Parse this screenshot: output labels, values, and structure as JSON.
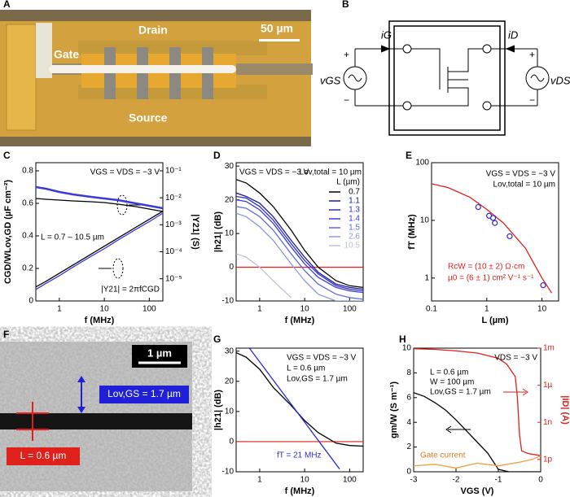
{
  "panels": {
    "labels": [
      "A",
      "B",
      "C",
      "D",
      "E",
      "F",
      "G",
      "H"
    ],
    "a": {
      "drain": "Drain",
      "gate": "Gate",
      "source": "Source",
      "scale": "50 µm"
    },
    "b": {
      "iG": "iG",
      "iD": "iD",
      "vGS": "vGS",
      "vDS": "vDS",
      "plus": "+",
      "minus": "−"
    },
    "f": {
      "scale": "1 µm",
      "lov": "Lov,GS = 1.7 µm",
      "l": "L = 0.6 µm"
    }
  },
  "chart_data": [
    {
      "type": "line",
      "xlabel": "f (MHz)",
      "ylabel": "CGD/WLov,GD (µF cm⁻²)",
      "y2label": "|Y21| (S)",
      "xlog": true,
      "y2log": true,
      "xlim": [
        0.3,
        200
      ],
      "xticks": [
        1,
        10,
        100
      ],
      "ylim": [
        0,
        0.85
      ],
      "yticks": [
        0.0,
        0.2,
        0.4,
        0.6,
        0.8
      ],
      "y2lim": [
        1.5e-06,
        0.2
      ],
      "y2ticks": [
        {
          "value": 1e-05,
          "label": "10⁻⁵"
        },
        {
          "value": 0.0001,
          "label": "10⁻⁴"
        },
        {
          "value": 0.001,
          "label": "10⁻³"
        },
        {
          "value": 0.01,
          "label": "10⁻²"
        },
        {
          "value": 0.1,
          "label": "10⁻¹"
        }
      ],
      "x": [
        0.3,
        0.5,
        1,
        2,
        5,
        10,
        20,
        50,
        100,
        200
      ],
      "series": [
        {
          "color": "#3a3ad8",
          "values": [
            0.7,
            0.69,
            0.67,
            0.655,
            0.64,
            0.63,
            0.62,
            0.6,
            0.585,
            0.57
          ]
        },
        {
          "color": "#000000",
          "values": [
            0.63,
            0.625,
            0.62,
            0.615,
            0.61,
            0.605,
            0.595,
            0.58,
            0.565,
            0.55
          ]
        },
        {
          "color": "#3a3ad8",
          "axis": "y2",
          "values": [
            4e-06,
            6.7e-06,
            1.3e-05,
            2.7e-05,
            6.7e-05,
            0.00013,
            0.00027,
            0.00067,
            0.0013,
            0.0027
          ]
        },
        {
          "color": "#000000",
          "axis": "y2",
          "values": [
            5e-06,
            8e-06,
            1.6e-05,
            3.2e-05,
            8e-05,
            0.00016,
            0.00032,
            0.0008,
            0.0016,
            0.0032
          ]
        }
      ],
      "annotations": [
        {
          "text": "VGS = VDS = −3 V"
        },
        {
          "text": "L = 0.7 – 10.5 µm"
        },
        {
          "text": "|Y21| = 2πfCGD"
        }
      ]
    },
    {
      "type": "line",
      "xlabel": "f (MHz)",
      "ylabel": "|h21| (dB)",
      "xlog": true,
      "xlim": [
        0.3,
        200
      ],
      "xticks": [
        1,
        10,
        100
      ],
      "ylim": [
        -10,
        31
      ],
      "yticks": [
        -10,
        0,
        10,
        20,
        30
      ],
      "hline": 0,
      "hline_color": "#e0201b",
      "x": [
        0.3,
        0.5,
        1,
        2,
        5,
        10,
        20,
        50,
        100,
        200
      ],
      "legend_title": "L (µm)",
      "series": [
        {
          "name": "0.7",
          "color": "#000000",
          "values": [
            26,
            25,
            22,
            18,
            11,
            5,
            0,
            -4,
            -5.5,
            -6
          ]
        },
        {
          "name": "1.1",
          "color": "#1a1a8c",
          "values": [
            22,
            21,
            19,
            15,
            8,
            3,
            -1.5,
            -5,
            -6,
            -6.5
          ]
        },
        {
          "name": "1.3",
          "color": "#2b2bd0",
          "values": [
            21,
            20.5,
            18,
            14,
            7,
            2,
            -2,
            -5.5,
            -6.5,
            -7
          ]
        },
        {
          "name": "1.4",
          "color": "#3a3ae0",
          "values": [
            20,
            19.5,
            17,
            13,
            6,
            1,
            -3,
            -6,
            -7,
            -7.5
          ]
        },
        {
          "name": "1.5",
          "color": "#5a6ad8",
          "values": [
            18,
            17.5,
            15,
            11,
            4,
            -1,
            -5,
            -8,
            -9,
            -9.5
          ]
        },
        {
          "name": "2.6",
          "color": "#8a9ad8",
          "values": [
            16,
            15,
            12,
            8,
            1,
            -4,
            -8,
            -10,
            -10,
            -10
          ]
        },
        {
          "name": "10.5",
          "color": "#c0c0d8",
          "values": [
            4,
            3,
            0,
            -4,
            -9,
            null,
            null,
            null,
            null,
            null
          ]
        }
      ],
      "annotations": [
        {
          "text": "VGS = VDS = −3 V"
        },
        {
          "text": "Lov,total = 10 µm"
        }
      ]
    },
    {
      "type": "scatter",
      "xlabel": "L (µm)",
      "ylabel": "fT (MHz)",
      "xlog": true,
      "ylog": true,
      "xlim": [
        0.1,
        20
      ],
      "xticks": [
        0.1,
        1,
        10
      ],
      "ylim": [
        0.4,
        100
      ],
      "yticks": [
        1,
        10,
        100
      ],
      "series": [
        {
          "color": "#e0201b",
          "kind": "line",
          "x": [
            0.1,
            0.2,
            0.5,
            1,
            2,
            5,
            10,
            15
          ],
          "values": [
            43,
            37,
            25,
            15.5,
            9,
            3.3,
            1.0,
            0.55
          ]
        },
        {
          "color": "#2b2bd0",
          "x": [
            0.7,
            1.1,
            1.3,
            1.4,
            2.6,
            10.5
          ],
          "values": [
            17,
            12,
            11,
            9,
            5.3,
            0.75
          ]
        }
      ],
      "annotations": [
        {
          "text": "VGS = VDS = −3 V"
        },
        {
          "text": "Lov,total = 10 µm"
        },
        {
          "text": "RcW = (10 ± 2) Ω·cm",
          "color": "#e0201b"
        },
        {
          "text": "µ0 = (6 ± 1) cm² V⁻¹ s⁻¹",
          "color": "#e0201b"
        }
      ]
    },
    {
      "type": "line",
      "xlabel": "f (MHz)",
      "ylabel": "|h21| (dB)",
      "xlog": true,
      "xlim": [
        0.3,
        200
      ],
      "xticks": [
        1,
        10,
        100
      ],
      "ylim": [
        -10,
        31
      ],
      "yticks": [
        -10,
        0,
        10,
        20,
        30
      ],
      "hline": 0,
      "hline_color": "#e0201b",
      "series": [
        {
          "color": "#000000",
          "x": [
            0.3,
            0.5,
            1,
            2,
            5,
            10,
            20,
            50,
            100,
            200
          ],
          "values": [
            29.5,
            28,
            24,
            18,
            12,
            7,
            3,
            -0.5,
            -1.3,
            -1.5
          ]
        },
        {
          "color": "#2b2bd0",
          "x": [
            0.6,
            60
          ],
          "values": [
            30.9,
            -9.1
          ]
        }
      ],
      "annotations": [
        {
          "text": "VGS = VDS = −3 V"
        },
        {
          "text": "L = 0.6 µm"
        },
        {
          "text": "Lov,GS = 1.7 µm"
        },
        {
          "text": "fT = 21 MHz",
          "color": "#2b2bd0"
        }
      ]
    },
    {
      "type": "line",
      "xlabel": "VGS (V)",
      "ylabel": "gm/W (S m⁻¹)",
      "y2label": "|ID| (A)",
      "y2log": true,
      "y2_color": "#e0201b",
      "xlim": [
        -3,
        0
      ],
      "xticks": [
        -3,
        -2,
        -1,
        0
      ],
      "ylim": [
        0,
        10
      ],
      "yticks": [
        0,
        2,
        4,
        6,
        8,
        10
      ],
      "y2lim": [
        1e-13,
        0.001
      ],
      "y2ticks": [
        {
          "value": 1e-12,
          "label": "1p"
        },
        {
          "value": 1e-09,
          "label": "1n"
        },
        {
          "value": 1e-06,
          "label": "1µ"
        },
        {
          "value": 0.001,
          "label": "1m"
        }
      ],
      "series": [
        {
          "color": "#000000",
          "x": [
            -3,
            -2.75,
            -2.5,
            -2.25,
            -2,
            -1.75,
            -1.5,
            -1.25,
            -1,
            -0.75,
            -0.5,
            -0.25,
            0
          ],
          "values": [
            6.4,
            6.1,
            5.6,
            5.0,
            4.2,
            3.3,
            2.4,
            1.5,
            0.2,
            0,
            0,
            0,
            0
          ]
        },
        {
          "color": "#e0201b",
          "axis": "y2",
          "x": [
            -3,
            -2.5,
            -2,
            -1.5,
            -1,
            -0.8,
            -0.6,
            -0.55,
            -0.5,
            -0.45,
            -0.3,
            0
          ],
          "values": [
            0.0009,
            0.0008,
            0.0006,
            0.0004,
            0.00015,
            5e-05,
            5e-06,
            1e-07,
            1e-10,
            5e-12,
            3e-12,
            2e-12
          ]
        },
        {
          "color": "#f0a040",
          "axis": "y2",
          "x": [
            -3,
            -2.5,
            -2,
            -1.5,
            -1,
            -0.5,
            -0.2,
            0
          ],
          "values": [
            3e-13,
            4e-13,
            2e-13,
            5e-13,
            3e-13,
            6e-13,
            1e-12,
            2e-12
          ]
        }
      ],
      "annotations": [
        {
          "text": "VDS = −3 V"
        },
        {
          "text": "L = 0.6 µm"
        },
        {
          "text": "W = 100 µm"
        },
        {
          "text": "Lov,GS = 1.7 µm"
        },
        {
          "text": "Gate current",
          "color": "#e08020"
        }
      ]
    }
  ]
}
